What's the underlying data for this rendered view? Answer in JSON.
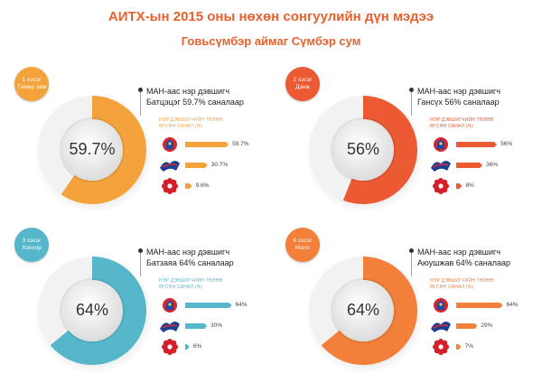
{
  "page": {
    "title": "АИТХ-ын 2015 оны нөхөн сонгуулийн дүн мэдээ",
    "subtitle": "Говьсүмбэр аймаг Сүмбэр сум",
    "title_color": "#e8612c",
    "subtitle_color": "#e8612c"
  },
  "chart_data": [
    {
      "type": "pie",
      "district_line1": "1 хэсэг",
      "district_line2": "Төмөр зам",
      "center_label": "59.7%",
      "head_line1": "МАН-аас нэр дэвшигч",
      "head_line2": "Батцэцэг 59.7% саналаар",
      "votes_label_line1": "НЭР ДЭВШИГЧИЙН ТӨЛӨӨ",
      "votes_label_line2": "ӨГСӨН САНАЛ (%)",
      "share": 59.7,
      "color": "#f4a23c",
      "bars": [
        {
          "party": "MAN",
          "value": 59.7,
          "label": "59.7%"
        },
        {
          "party": "AN",
          "value": 30.7,
          "label": "30.7%"
        },
        {
          "party": "MAHN",
          "value": 9.6,
          "label": "9.6%"
        }
      ]
    },
    {
      "type": "pie",
      "district_line1": "2 хэсэг",
      "district_line2": "Дэнж",
      "center_label": "56%",
      "head_line1": "МАН-аас нэр дэвшигч",
      "head_line2": "Гансүх 56% саналаар",
      "votes_label_line1": "НЭР ДЭВШИГЧИЙН ТӨЛӨӨ",
      "votes_label_line2": "ӨГСӨН САНАЛ (%)",
      "share": 56,
      "color": "#ec5a33",
      "bars": [
        {
          "party": "MAN",
          "value": 56,
          "label": "56%"
        },
        {
          "party": "AN",
          "value": 36,
          "label": "36%"
        },
        {
          "party": "MAHN",
          "value": 8,
          "label": "8%"
        }
      ]
    },
    {
      "type": "pie",
      "district_line1": "3 хэсэг",
      "district_line2": "Хонхор",
      "center_label": "64%",
      "head_line1": "МАН-аас нэр дэвшигч",
      "head_line2": "Батзаяа 64% саналаар",
      "votes_label_line1": "НЭР ДЭВШИГЧИЙН ТӨЛӨӨ",
      "votes_label_line2": "ӨГСӨН САНАЛ (%)",
      "share": 64,
      "color": "#56b7cb",
      "bars": [
        {
          "party": "MAN",
          "value": 64,
          "label": "64%"
        },
        {
          "party": "AN",
          "value": 30,
          "label": "30%"
        },
        {
          "party": "MAHN",
          "value": 6,
          "label": "6%"
        }
      ]
    },
    {
      "type": "pie",
      "district_line1": "6 хэсэг",
      "district_line2": "Малх",
      "center_label": "64%",
      "head_line1": "МАН-аас нэр дэвшигч",
      "head_line2": "Аюушжав 64% саналаар",
      "votes_label_line1": "НЭР ДЭВШИГЧИЙН ТӨЛӨӨ",
      "votes_label_line2": "ӨГСӨН САНАЛ (%)",
      "share": 64,
      "color": "#f27f3a",
      "bars": [
        {
          "party": "MAN",
          "value": 64,
          "label": "64%"
        },
        {
          "party": "AN",
          "value": 29,
          "label": "29%"
        },
        {
          "party": "MAHN",
          "value": 7,
          "label": "7%"
        }
      ]
    }
  ],
  "party_icons": {
    "MAN": "man-party-emblem-icon",
    "AN": "an-party-emblem-icon",
    "MAHN": "mahn-party-emblem-icon"
  }
}
